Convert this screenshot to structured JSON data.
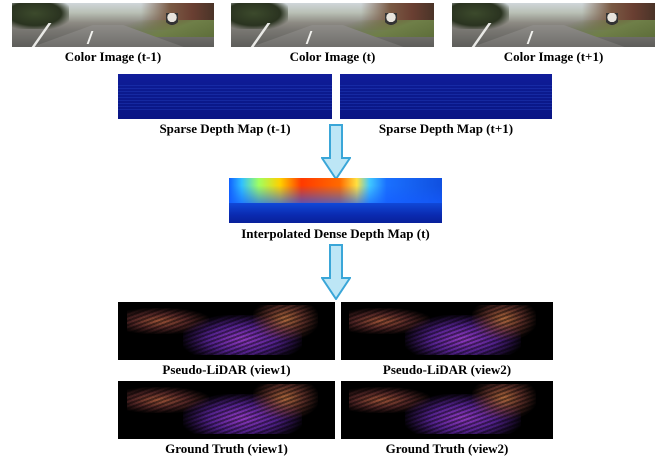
{
  "captions": {
    "color_prev": "Color Image (t-1)",
    "color_curr": "Color Image (t)",
    "color_next": "Color Image (t+1)",
    "sparse_prev": "Sparse Depth Map (t-1)",
    "sparse_next": "Sparse Depth Map (t+1)",
    "dense": "Interpolated Dense Depth Map (t)",
    "pseudo_view1": "Pseudo-LiDAR (view1)",
    "pseudo_view2": "Pseudo-LiDAR (view2)",
    "gt_view1": "Ground Truth (view1)",
    "gt_view2": "Ground Truth (view2)"
  },
  "colors": {
    "arrow_fill": "#bde6f6",
    "arrow_stroke": "#3aa6d8"
  },
  "icons": {
    "flow_arrow": "down-arrow-icon"
  }
}
